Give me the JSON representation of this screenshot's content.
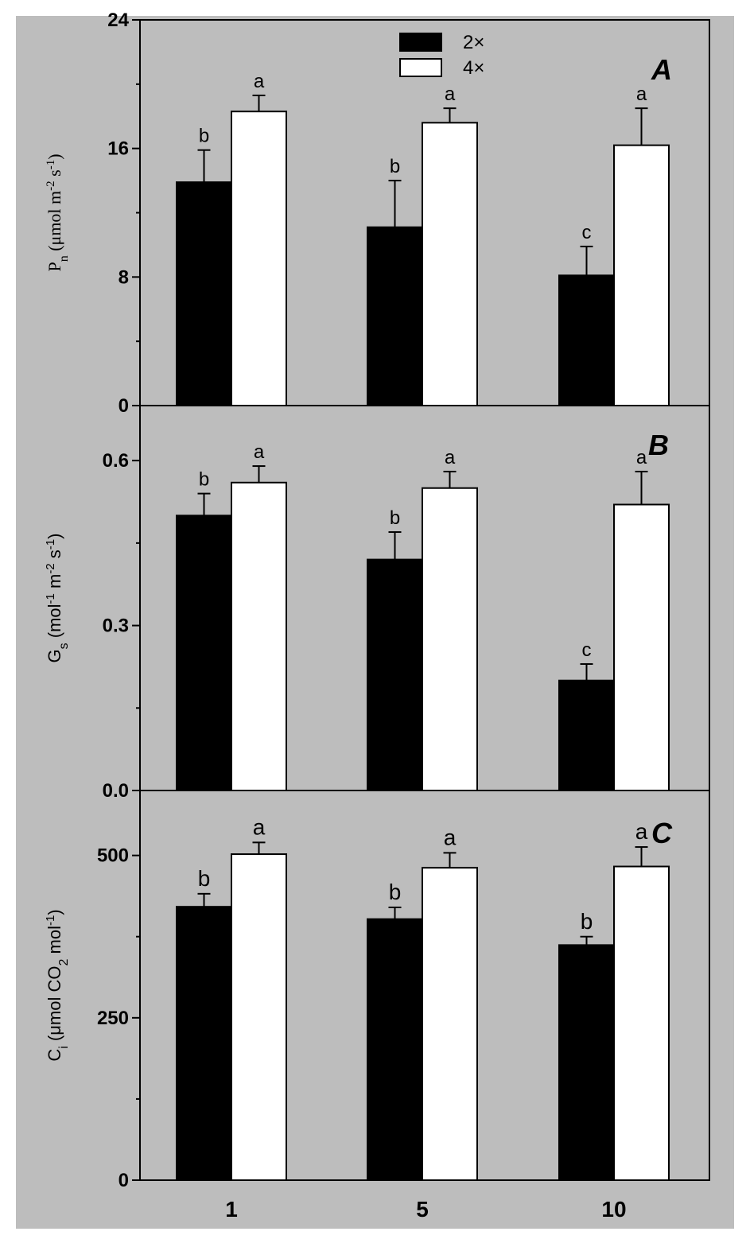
{
  "legend": [
    {
      "label": "2×",
      "color": "#000000"
    },
    {
      "label": "4×",
      "color": "#ffffff"
    }
  ],
  "chart_data": [
    {
      "type": "bar",
      "panel": "A",
      "ylabel_main": "P",
      "ylabel_sub": "n",
      "ylabel_rest": " (μmol m",
      "ylabel_sup1": "-2",
      "ylabel_mid": " s",
      "ylabel_sup2": "-1",
      "ylabel_end": ")",
      "categories": [
        "1",
        "5",
        "10"
      ],
      "ylim": [
        0,
        24
      ],
      "yticks": [
        0,
        8,
        16,
        24
      ],
      "ytick_labels": [
        "0",
        "8",
        "16",
        "24"
      ],
      "series": [
        {
          "name": "2×",
          "values": [
            13.9,
            11.1,
            8.1
          ],
          "errors": [
            2.0,
            2.9,
            1.8
          ],
          "sig": [
            "b",
            "b",
            "c"
          ]
        },
        {
          "name": "4×",
          "values": [
            18.3,
            17.6,
            16.2
          ],
          "errors": [
            1.0,
            0.9,
            2.3
          ],
          "sig": [
            "a",
            "a",
            "a"
          ]
        }
      ]
    },
    {
      "type": "bar",
      "panel": "B",
      "ylabel_main": "G",
      "ylabel_sub": "s",
      "ylabel_rest": " (mol",
      "ylabel_sup1": "-1",
      "ylabel_mid": " m",
      "ylabel_sup2": "-2",
      "ylabel_end2": " s",
      "ylabel_sup3": "-1",
      "ylabel_end": ")",
      "categories": [
        "1",
        "5",
        "10"
      ],
      "ylim": [
        0.0,
        0.7
      ],
      "yticks": [
        0.0,
        0.3,
        0.6
      ],
      "ytick_labels": [
        "0.0",
        "0.3",
        "0.6"
      ],
      "series": [
        {
          "name": "2×",
          "values": [
            0.5,
            0.42,
            0.2
          ],
          "errors": [
            0.04,
            0.05,
            0.03
          ],
          "sig": [
            "b",
            "b",
            "c"
          ]
        },
        {
          "name": "4×",
          "values": [
            0.56,
            0.55,
            0.52
          ],
          "errors": [
            0.03,
            0.03,
            0.06
          ],
          "sig": [
            "a",
            "a",
            "a"
          ]
        }
      ]
    },
    {
      "type": "bar",
      "panel": "C",
      "ylabel_main": "C",
      "ylabel_sub": "i",
      "ylabel_rest": " (μmol CO",
      "ylabel_sub2": "2",
      "ylabel_mid": " mol",
      "ylabel_sup1": "-1",
      "ylabel_end": ")",
      "categories": [
        "1",
        "5",
        "10"
      ],
      "ylim": [
        0,
        600
      ],
      "yticks": [
        0,
        250,
        500
      ],
      "ytick_labels": [
        "0",
        "250",
        "500"
      ],
      "series": [
        {
          "name": "2×",
          "values": [
            421,
            402,
            362
          ],
          "errors": [
            20,
            18,
            13
          ],
          "sig": [
            "b",
            "b",
            "b"
          ]
        },
        {
          "name": "4×",
          "values": [
            502,
            481,
            483
          ],
          "errors": [
            18,
            23,
            30
          ],
          "sig": [
            "a",
            "a",
            "a"
          ]
        }
      ]
    }
  ]
}
